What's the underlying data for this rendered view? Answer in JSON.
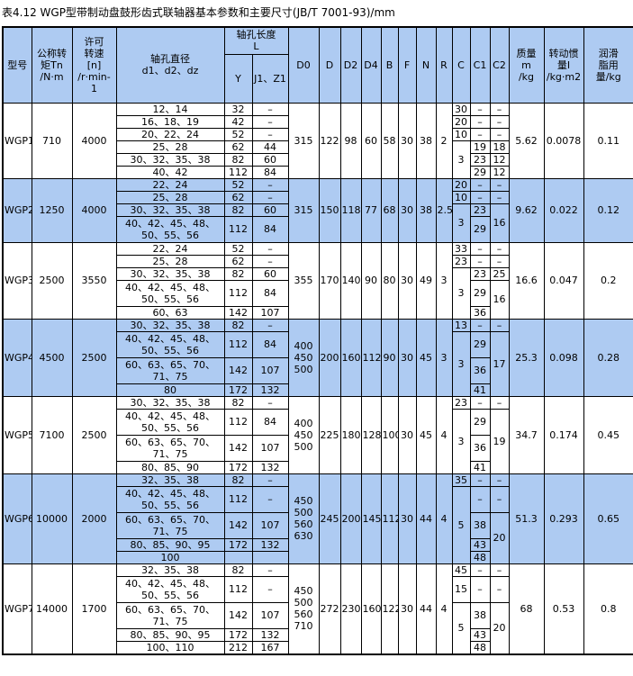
{
  "title": "表4.12 WGP型带制动盘鼓形齿式联轴器基本参数和主要尺寸(JB/T 7001-93)/mm",
  "colors": {
    "band_blue": "#aecbf2",
    "band_white": "#ffffff",
    "border": "#000000"
  },
  "header": {
    "model": "型号",
    "torque": "公称转\n矩Tn\n/N·m",
    "speed": "许可\n转速\n[n]\n/r·min-\n1",
    "bore_diameter": "轴孔直径\nd1、d2、dz",
    "bore_length": "轴孔长度\nL",
    "y": "Y",
    "j1z1": "J1、Z1",
    "dims": [
      "D0",
      "D",
      "D2",
      "D4",
      "B",
      "F",
      "N",
      "R",
      "C",
      "C1",
      "C2"
    ],
    "mass": "质量\nm\n/kg",
    "inertia": "转动惯\n量I\n/kg·m2",
    "grease": "润滑\n脂用\n量/kg"
  },
  "sections": [
    {
      "model": "WGP1",
      "torque": "710",
      "speed": "4000",
      "shade": false,
      "d0": "315",
      "d": "122",
      "d2": "98",
      "d4": "60",
      "b": "58",
      "f": "30",
      "n": "38",
      "r": "2",
      "mass": "5.62",
      "inertia": "0.0078",
      "grease": "0.11",
      "rows": [
        {
          "dia": "12、14",
          "y": "32",
          "j": "–",
          "c": "30",
          "c1": "–",
          "c2": "–"
        },
        {
          "dia": "16、18、19",
          "y": "42",
          "j": "–",
          "c": "20",
          "c1": "–",
          "c2": "–"
        },
        {
          "dia": "20、22、24",
          "y": "52",
          "j": "–",
          "c": "10",
          "c1": "–",
          "c2": "–"
        },
        {
          "dia": "25、28",
          "y": "62",
          "j": "44",
          "c": {
            "v": "3",
            "span": 3
          },
          "c1": "19",
          "c2": "18"
        },
        {
          "dia": "30、32、35、38",
          "y": "82",
          "j": "60",
          "c1": "23",
          "c2": "12"
        },
        {
          "dia": "40、42",
          "y": "112",
          "j": "84",
          "c1": "29",
          "c2": "12"
        }
      ]
    },
    {
      "model": "WGP2",
      "torque": "1250",
      "speed": "4000",
      "shade": true,
      "d0": "315",
      "d": "150",
      "d2": "118",
      "d4": "77",
      "b": "68",
      "f": "30",
      "n": "38",
      "r": "2.5",
      "mass": "9.62",
      "inertia": "0.022",
      "grease": "0.12",
      "rows": [
        {
          "dia": "22、24",
          "y": "52",
          "j": "–",
          "c": "20",
          "c1": "–",
          "c2": "–"
        },
        {
          "dia": "25、28",
          "y": "62",
          "j": "–",
          "c": "10",
          "c1": "–",
          "c2": "–"
        },
        {
          "dia": "30、32、35、38",
          "y": "82",
          "j": "60",
          "c": {
            "v": "3",
            "span": 2
          },
          "c1": "23",
          "c2": {
            "v": "16",
            "span": 2
          }
        },
        {
          "dia": "40、42、45、48、\n50、55、56",
          "tall": true,
          "y": "112",
          "j": "84",
          "c1": "29"
        }
      ]
    },
    {
      "model": "WGP3",
      "torque": "2500",
      "speed": "3550",
      "shade": false,
      "d0": "355",
      "d": "170",
      "d2": "140",
      "d4": "90",
      "b": "80",
      "f": "30",
      "n": "49",
      "r": "3",
      "mass": "16.6",
      "inertia": "0.047",
      "grease": "0.2",
      "rows": [
        {
          "dia": "22、24",
          "y": "52",
          "j": "–",
          "c": "33",
          "c1": "–",
          "c2": "–"
        },
        {
          "dia": "25、28",
          "y": "62",
          "j": "–",
          "c": "23",
          "c1": "–",
          "c2": "–"
        },
        {
          "dia": "30、32、35、38",
          "y": "82",
          "j": "60",
          "c": {
            "v": "3",
            "span": 3
          },
          "c1": "23",
          "c2": "25"
        },
        {
          "dia": "40、42、45、48、\n50、55、56",
          "tall": true,
          "y": "112",
          "j": "84",
          "c1": "29",
          "c2": {
            "v": "16",
            "span": 2
          }
        },
        {
          "dia": "60、63",
          "y": "142",
          "j": "107",
          "c1": "36"
        }
      ]
    },
    {
      "model": "WGP4",
      "torque": "4500",
      "speed": "2500",
      "shade": true,
      "d0": "400\n450\n500",
      "d": "200",
      "d2": "160",
      "d4": "112",
      "b": "90",
      "f": "30",
      "n": "45",
      "r": "3",
      "mass": "25.3",
      "inertia": "0.098",
      "grease": "0.28",
      "rows": [
        {
          "dia": "30、32、35、38",
          "y": "82",
          "j": "–",
          "c": "13",
          "c1": "–",
          "c2": "–"
        },
        {
          "dia": "40、42、45、48、\n50、55、56",
          "tall": true,
          "y": "112",
          "j": "84",
          "c": {
            "v": "3",
            "span": 3
          },
          "c1": "29",
          "c2": {
            "v": "17",
            "span": 3
          }
        },
        {
          "dia": "60、63、65、70、\n71、75",
          "tall": true,
          "y": "142",
          "j": "107",
          "c1": "36"
        },
        {
          "dia": "80",
          "y": "172",
          "j": "132",
          "c1": "41"
        }
      ]
    },
    {
      "model": "WGP5",
      "torque": "7100",
      "speed": "2500",
      "shade": false,
      "d0": "400\n450\n500",
      "d": "225",
      "d2": "180",
      "d4": "128",
      "b": "100",
      "f": "30",
      "n": "45",
      "r": "4",
      "mass": "34.7",
      "inertia": "0.174",
      "grease": "0.45",
      "rows": [
        {
          "dia": "30、32、35、38",
          "y": "82",
          "j": "–",
          "c": "23",
          "c1": "–",
          "c2": "–"
        },
        {
          "dia": "40、42、45、48、\n50、55、56",
          "tall": true,
          "y": "112",
          "j": "84",
          "c": {
            "v": "3",
            "span": 3
          },
          "c1": "29",
          "c2": {
            "v": "19",
            "span": 3
          }
        },
        {
          "dia": "60、63、65、70、\n71、75",
          "tall": true,
          "y": "142",
          "j": "107",
          "c1": "36"
        },
        {
          "dia": "80、85、90",
          "y": "172",
          "j": "132",
          "c1": "41"
        }
      ]
    },
    {
      "model": "WGP6",
      "torque": "10000",
      "speed": "2000",
      "shade": true,
      "d0": "450\n500\n560\n630",
      "d": "245",
      "d2": "200",
      "d4": "145",
      "b": "112",
      "f": "30",
      "n": "44",
      "r": "4",
      "mass": "51.3",
      "inertia": "0.293",
      "grease": "0.65",
      "rows": [
        {
          "dia": "32、35、38",
          "y": "82",
          "j": "–",
          "c": "35",
          "c1": "–",
          "c2": "–"
        },
        {
          "dia": "40、42、45、48、\n50、55、56",
          "tall": true,
          "y": "112",
          "j": "–",
          "c": {
            "v": "5",
            "span": 4
          },
          "c1": "–",
          "c2": "–"
        },
        {
          "dia": "60、63、65、70、\n71、75",
          "tall": true,
          "y": "142",
          "j": "107",
          "c1": "38",
          "c2": {
            "v": "20",
            "span": 3
          }
        },
        {
          "dia": "80、85、90、95",
          "y": "172",
          "j": "132",
          "c1": "43"
        },
        {
          "dia": "100",
          "y": "",
          "j": "",
          "c1": "48"
        }
      ]
    },
    {
      "model": "WGP7",
      "torque": "14000",
      "speed": "1700",
      "shade": false,
      "d0": "450\n500\n560\n710",
      "d": "272",
      "d2": "230",
      "d4": "160",
      "b": "122",
      "f": "30",
      "n": "44",
      "r": "4",
      "mass": "68",
      "inertia": "0.53",
      "grease": "0.8",
      "rows": [
        {
          "dia": "32、35、38",
          "y": "82",
          "j": "–",
          "c": "45",
          "c1": "–",
          "c2": "–"
        },
        {
          "dia": "40、42、45、48、\n50、55、56",
          "tall": true,
          "y": "112",
          "j": "–",
          "c": "15",
          "c1": "–",
          "c2": "–"
        },
        {
          "dia": "60、63、65、70、\n71、75",
          "tall": true,
          "y": "142",
          "j": "107",
          "c": {
            "v": "5",
            "span": 3
          },
          "c1": "38",
          "c2": {
            "v": "20",
            "span": 3
          }
        },
        {
          "dia": "80、85、90、95",
          "y": "172",
          "j": "132",
          "c1": "43"
        },
        {
          "dia": "100、110",
          "y": "212",
          "j": "167",
          "c1": "48"
        }
      ]
    }
  ]
}
